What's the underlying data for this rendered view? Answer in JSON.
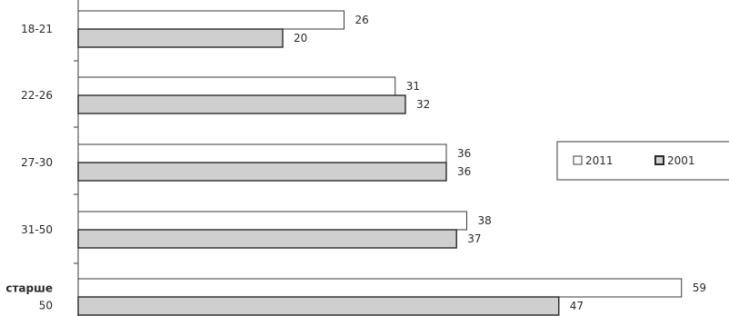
{
  "chart_data": {
    "type": "bar",
    "orientation": "horizontal",
    "categories": [
      [
        "18-21"
      ],
      [
        "22-26"
      ],
      [
        "27-30"
      ],
      [
        "31-50"
      ],
      [
        "старше",
        "50"
      ]
    ],
    "series": [
      {
        "name": "2011",
        "values": [
          26,
          31,
          36,
          38,
          59
        ],
        "color": "#ffffff",
        "stroke": "#3a3a3a"
      },
      {
        "name": "2001",
        "values": [
          20,
          32,
          36,
          37,
          47
        ],
        "color": "#cfcfcf",
        "stroke": "#2a2a2a"
      }
    ],
    "xlim": [
      0,
      60
    ],
    "grid": false,
    "legend": "right"
  }
}
